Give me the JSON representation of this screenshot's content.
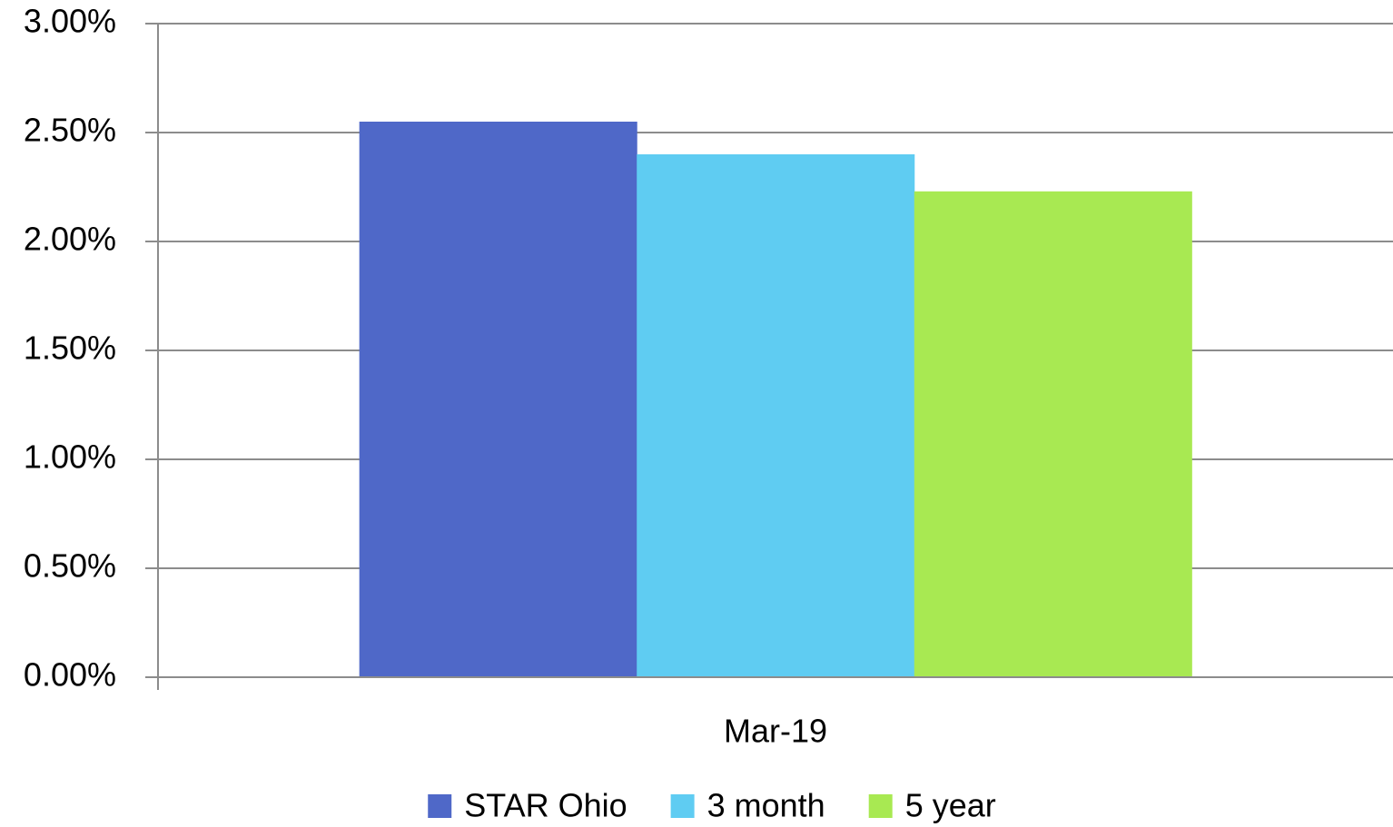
{
  "chart_data": {
    "type": "bar",
    "categories": [
      "Mar-19"
    ],
    "series": [
      {
        "name": "STAR Ohio",
        "color": "#4f68c8",
        "values": [
          2.55
        ]
      },
      {
        "name": "3 month",
        "color": "#5fccf2",
        "values": [
          2.4
        ]
      },
      {
        "name": "5 year",
        "color": "#a8e952",
        "values": [
          2.23
        ]
      }
    ],
    "ylim": [
      0,
      3
    ],
    "yticks": [
      {
        "value": 0,
        "label": "0.00%"
      },
      {
        "value": 0.5,
        "label": "0.50%"
      },
      {
        "value": 1,
        "label": "1.00%"
      },
      {
        "value": 1.5,
        "label": "1.50%"
      },
      {
        "value": 2,
        "label": "2.00%"
      },
      {
        "value": 2.5,
        "label": "2.50%"
      },
      {
        "value": 3,
        "label": "3.00%"
      }
    ],
    "grid": true,
    "legend": "bottom"
  }
}
